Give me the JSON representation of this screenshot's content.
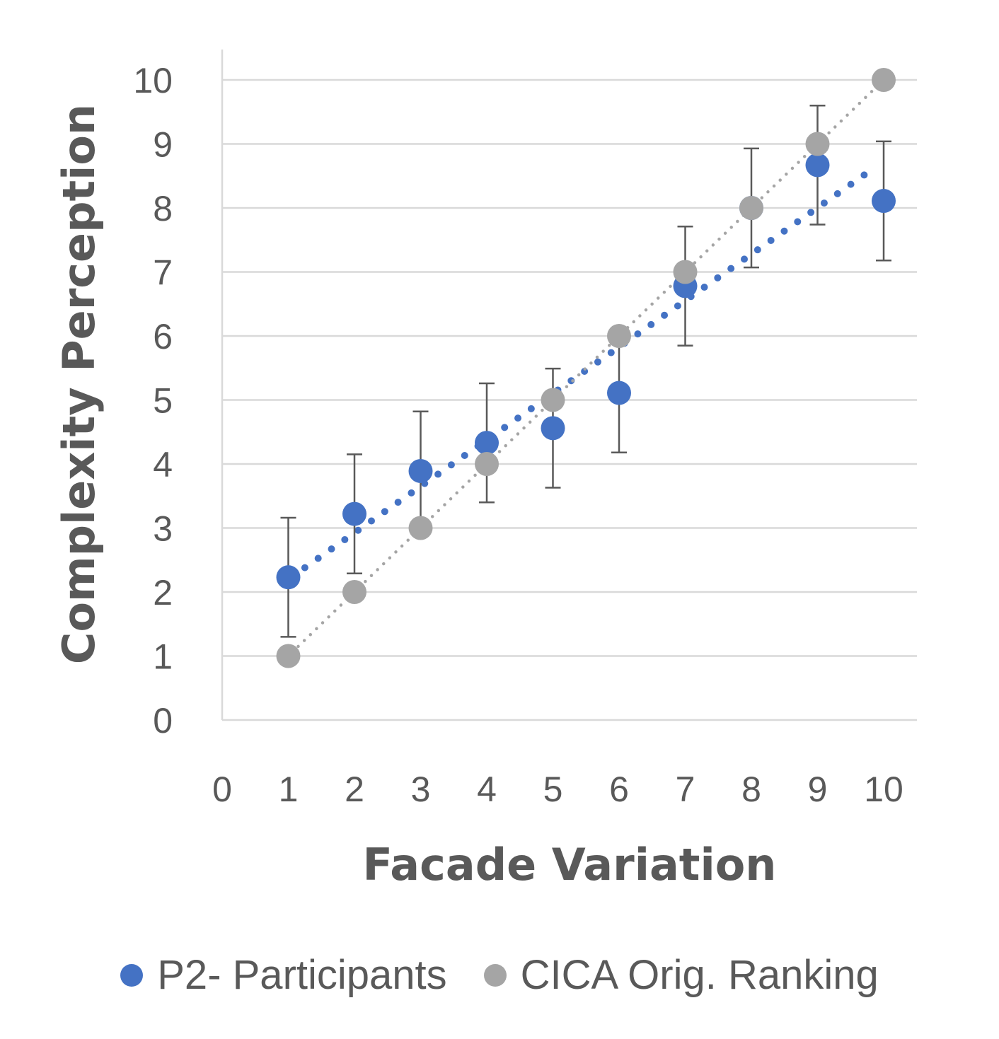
{
  "chart_data": {
    "type": "scatter",
    "xlabel": "Facade Variation",
    "ylabel": "Complexity Perception",
    "xlim": [
      0,
      10
    ],
    "ylim": [
      0,
      10
    ],
    "x_ticks": [
      "0",
      "1",
      "2",
      "3",
      "4",
      "5",
      "6",
      "7",
      "8",
      "9",
      "10"
    ],
    "y_ticks": [
      "0",
      "1",
      "2",
      "3",
      "4",
      "5",
      "6",
      "7",
      "8",
      "9",
      "10"
    ],
    "grid": "horizontal",
    "legend_position": "bottom",
    "series": [
      {
        "name": "P2- Participants",
        "color": "#4472C4",
        "x": [
          1,
          2,
          3,
          4,
          5,
          6,
          7,
          8,
          9,
          10
        ],
        "y": [
          2.23,
          3.22,
          3.89,
          4.33,
          4.56,
          5.11,
          6.78,
          8.0,
          8.67,
          8.11
        ],
        "error": [
          0.93,
          0.93,
          0.93,
          0.93,
          0.93,
          0.93,
          0.93,
          0.93,
          0.93,
          0.93
        ],
        "trendline": {
          "style": "dotted",
          "x": [
            1.25,
            9.85
          ],
          "y": [
            2.38,
            8.62
          ]
        }
      },
      {
        "name": "CICA Orig. Ranking",
        "color": "#A5A5A5",
        "x": [
          1,
          2,
          3,
          4,
          5,
          6,
          7,
          8,
          9,
          10
        ],
        "y": [
          1,
          2,
          3,
          4,
          5,
          6,
          7,
          8,
          9,
          10
        ],
        "trendline": {
          "style": "dotted",
          "x": [
            1.15,
            9.85
          ],
          "y": [
            1.15,
            9.85
          ]
        }
      }
    ]
  }
}
